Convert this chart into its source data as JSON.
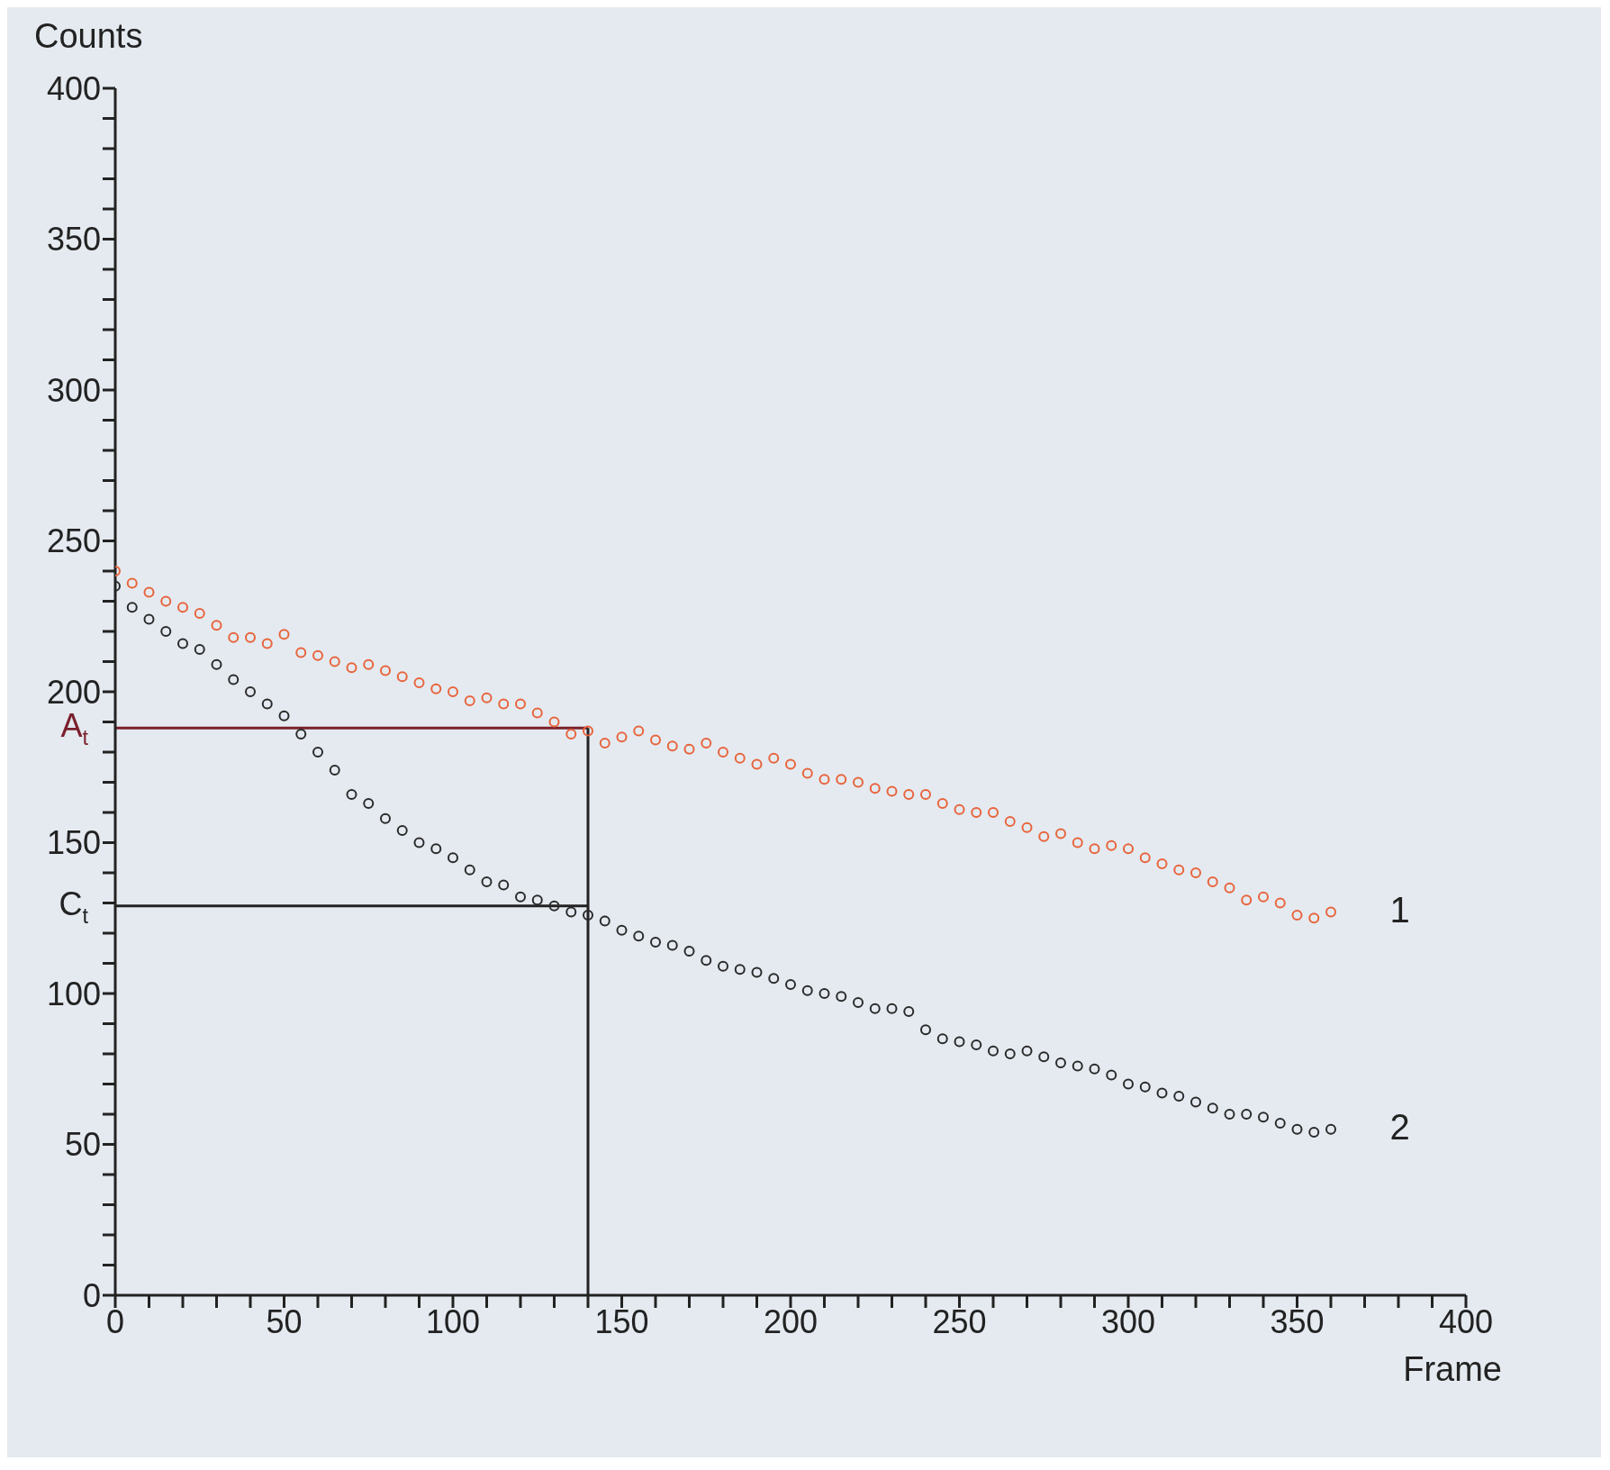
{
  "chart_data": {
    "type": "scatter",
    "xlabel": "Frame",
    "ylabel": "Counts",
    "marker": "circle",
    "grid": false,
    "xlim": [
      0,
      400
    ],
    "ylim": [
      0,
      400
    ],
    "xticks": [
      0,
      {
        "value": 10,
        "label": null
      },
      {
        "value": 20,
        "label": null
      },
      {
        "value": 30,
        "label": null
      },
      {
        "value": 40,
        "label": null
      },
      50,
      {
        "value": 60,
        "label": null
      },
      {
        "value": 70,
        "label": null
      },
      {
        "value": 80,
        "label": null
      },
      {
        "value": 90,
        "label": null
      },
      100,
      {
        "value": 110,
        "label": null
      },
      {
        "value": 120,
        "label": null
      },
      {
        "value": 130,
        "label": null
      },
      {
        "value": 140,
        "label": null
      },
      150,
      {
        "value": 160,
        "label": null
      },
      {
        "value": 170,
        "label": null
      },
      {
        "value": 180,
        "label": null
      },
      {
        "value": 190,
        "label": null
      },
      200,
      {
        "value": 210,
        "label": null
      },
      {
        "value": 220,
        "label": null
      },
      {
        "value": 230,
        "label": null
      },
      {
        "value": 240,
        "label": null
      },
      250,
      {
        "value": 260,
        "label": null
      },
      {
        "value": 270,
        "label": null
      },
      {
        "value": 280,
        "label": null
      },
      {
        "value": 290,
        "label": null
      },
      300,
      {
        "value": 310,
        "label": null
      },
      {
        "value": 320,
        "label": null
      },
      {
        "value": 330,
        "label": null
      },
      {
        "value": 340,
        "label": null
      },
      350,
      {
        "value": 360,
        "label": null
      },
      {
        "value": 370,
        "label": null
      },
      {
        "value": 380,
        "label": null
      },
      {
        "value": 390,
        "label": null
      },
      400
    ],
    "yticks": [
      0,
      {
        "value": 10,
        "label": null
      },
      {
        "value": 20,
        "label": null
      },
      {
        "value": 30,
        "label": null
      },
      {
        "value": 40,
        "label": null
      },
      50,
      {
        "value": 60,
        "label": null
      },
      {
        "value": 70,
        "label": null
      },
      {
        "value": 80,
        "label": null
      },
      {
        "value": 90,
        "label": null
      },
      100,
      {
        "value": 110,
        "label": null
      },
      {
        "value": 120,
        "label": null
      },
      {
        "value": 130,
        "label": null
      },
      {
        "value": 140,
        "label": null
      },
      150,
      {
        "value": 160,
        "label": null
      },
      {
        "value": 170,
        "label": null
      },
      {
        "value": 180,
        "label": null
      },
      {
        "value": 190,
        "label": null
      },
      200,
      {
        "value": 210,
        "label": null
      },
      {
        "value": 220,
        "label": null
      },
      {
        "value": 230,
        "label": null
      },
      {
        "value": 240,
        "label": null
      },
      250,
      {
        "value": 260,
        "label": null
      },
      {
        "value": 270,
        "label": null
      },
      {
        "value": 280,
        "label": null
      },
      {
        "value": 290,
        "label": null
      },
      300,
      {
        "value": 310,
        "label": null
      },
      {
        "value": 320,
        "label": null
      },
      {
        "value": 330,
        "label": null
      },
      {
        "value": 340,
        "label": null
      },
      350,
      {
        "value": 360,
        "label": null
      },
      {
        "value": 370,
        "label": null
      },
      {
        "value": 380,
        "label": null
      },
      {
        "value": 390,
        "label": null
      },
      400
    ],
    "x": [
      0,
      5,
      10,
      15,
      20,
      25,
      30,
      35,
      40,
      45,
      50,
      55,
      60,
      65,
      70,
      75,
      80,
      85,
      90,
      95,
      100,
      105,
      110,
      115,
      120,
      125,
      130,
      135,
      140,
      145,
      150,
      155,
      160,
      165,
      170,
      175,
      180,
      185,
      190,
      195,
      200,
      205,
      210,
      215,
      220,
      225,
      230,
      235,
      240,
      245,
      250,
      255,
      260,
      265,
      270,
      275,
      280,
      285,
      290,
      295,
      300,
      305,
      310,
      315,
      320,
      325,
      330,
      335,
      340,
      345,
      350,
      355,
      360
    ],
    "series": [
      {
        "name": "1",
        "color": "#e8643c",
        "values": [
          240,
          236,
          233,
          230,
          228,
          226,
          222,
          218,
          218,
          216,
          219,
          213,
          212,
          210,
          208,
          209,
          207,
          205,
          203,
          201,
          200,
          197,
          198,
          196,
          196,
          193,
          190,
          186,
          187,
          183,
          185,
          187,
          184,
          182,
          181,
          183,
          180,
          178,
          176,
          178,
          176,
          173,
          171,
          171,
          170,
          168,
          167,
          166,
          166,
          163,
          161,
          160,
          160,
          157,
          155,
          152,
          153,
          150,
          148,
          149,
          148,
          145,
          143,
          141,
          140,
          137,
          135,
          131,
          132,
          130,
          126,
          125,
          127
        ]
      },
      {
        "name": "2",
        "color": "#2a2a2a",
        "values": [
          235,
          228,
          224,
          220,
          216,
          214,
          209,
          204,
          200,
          196,
          192,
          186,
          180,
          174,
          166,
          163,
          158,
          154,
          150,
          148,
          145,
          141,
          137,
          136,
          132,
          131,
          129,
          127,
          126,
          124,
          121,
          119,
          117,
          116,
          114,
          111,
          109,
          108,
          107,
          105,
          103,
          101,
          100,
          99,
          97,
          95,
          95,
          94,
          88,
          85,
          84,
          83,
          81,
          80,
          81,
          79,
          77,
          76,
          75,
          73,
          70,
          69,
          67,
          66,
          64,
          62,
          60,
          60,
          59,
          57,
          55,
          54,
          55
        ]
      }
    ],
    "ref_lines": [
      {
        "axis": "y",
        "value": 188,
        "label": "A$_{t}$",
        "color": "#7a1f2b"
      },
      {
        "axis": "y",
        "value": 129,
        "label": "C$_{t}$",
        "color": "#222222"
      },
      {
        "axis": "x",
        "value": 140,
        "color": "#222222"
      }
    ]
  }
}
